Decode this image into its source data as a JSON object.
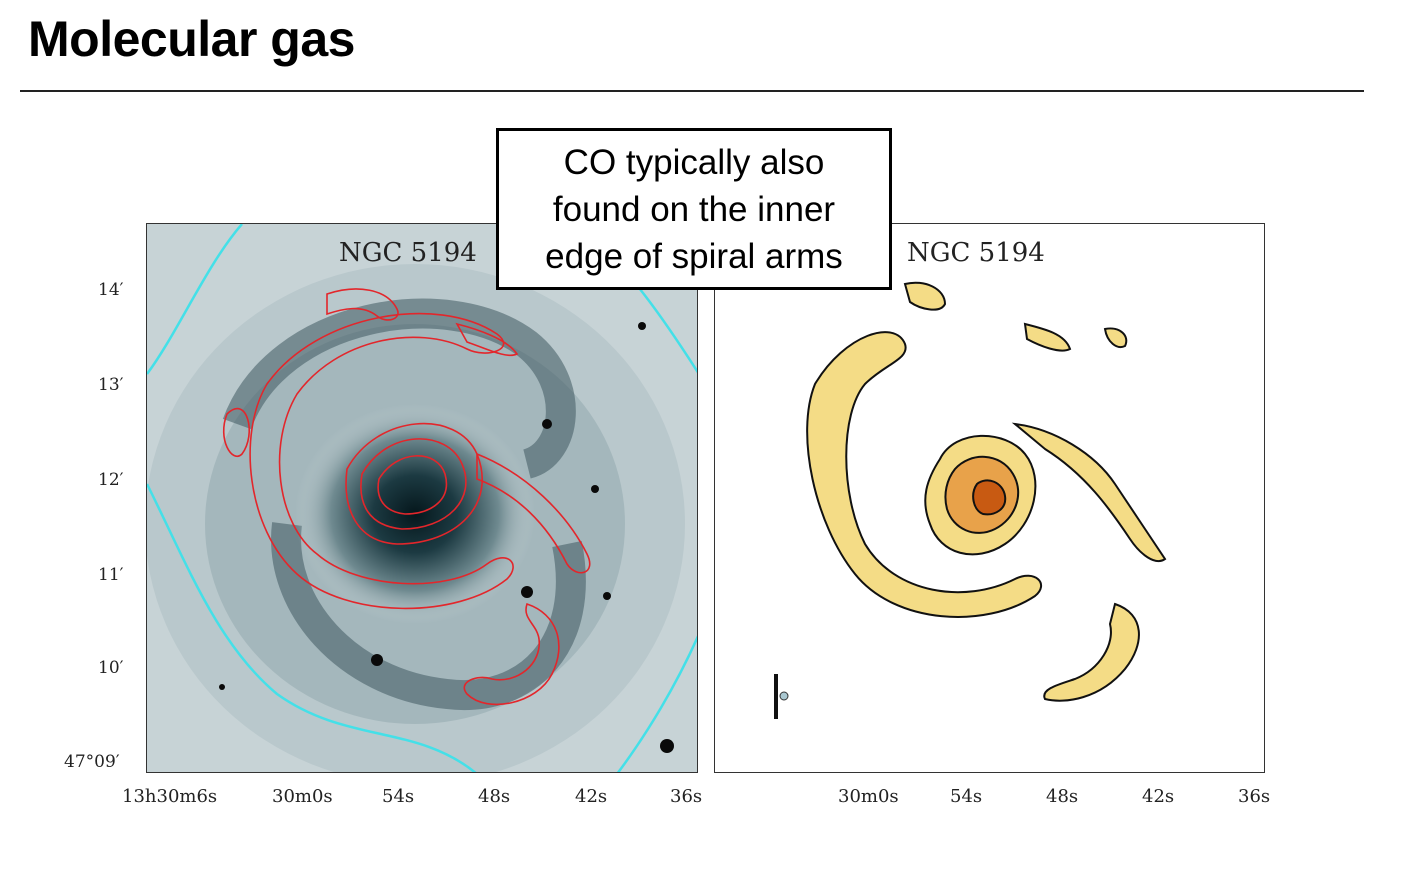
{
  "slide": {
    "title": "Molecular gas"
  },
  "callout": {
    "lines": [
      "CO typically also",
      "found on the inner",
      "edge of spiral arms"
    ]
  },
  "left_panel": {
    "label": "NGC 5194"
  },
  "right_panel": {
    "label": "NGC 5194"
  },
  "y_axis_ticks": [
    "14′",
    "13′",
    "12′",
    "11′",
    "10′",
    "47°09′"
  ],
  "x_axis_ticks_left": [
    "13h30m6s",
    "30m0s",
    "54s",
    "48s",
    "42s",
    "36s"
  ],
  "x_axis_ticks_right": [
    "30m0s",
    "54s",
    "48s",
    "42s",
    "36s"
  ],
  "colors": {
    "contour": "#e3262b",
    "coverage_line": "#44e0e8",
    "co_fill": "#f4dc86",
    "co_peak": "#c85a12"
  }
}
